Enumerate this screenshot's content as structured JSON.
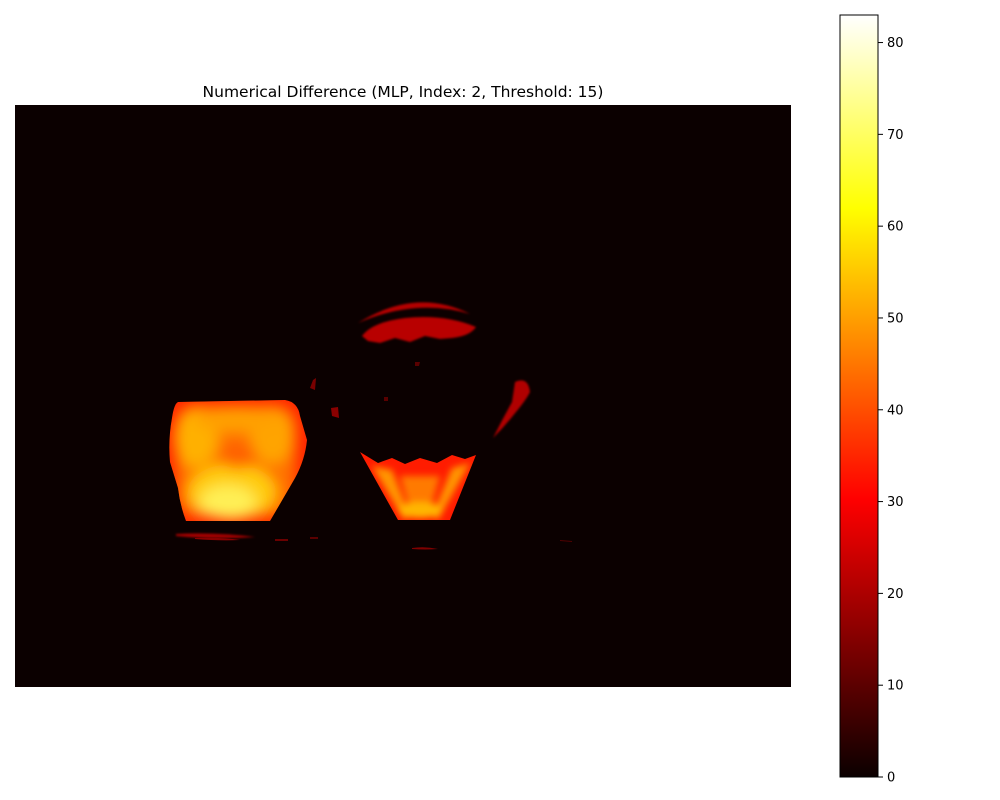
{
  "chart_data": {
    "type": "heatmap",
    "title": "Numerical Difference (MLP, Index: 2, Threshold: 15)",
    "xlabel": "",
    "ylabel": "",
    "axes_visible": false,
    "colormap": "hot",
    "colorbar": {
      "vmin": 0,
      "vmax": 83,
      "ticks": [
        0,
        10,
        20,
        30,
        40,
        50,
        60,
        70,
        80
      ],
      "tick_labels": [
        "0",
        "10",
        "20",
        "30",
        "40",
        "50",
        "60",
        "70",
        "80"
      ],
      "placement": "right"
    },
    "regions": [
      {
        "name": "left-block",
        "peak_value": 70
      },
      {
        "name": "center-bowl",
        "peak_value": 45
      },
      {
        "name": "top-arc",
        "peak_value": 22
      },
      {
        "name": "right-sliver",
        "peak_value": 20
      },
      {
        "name": "bottom-streak",
        "peak_value": 18
      }
    ]
  }
}
